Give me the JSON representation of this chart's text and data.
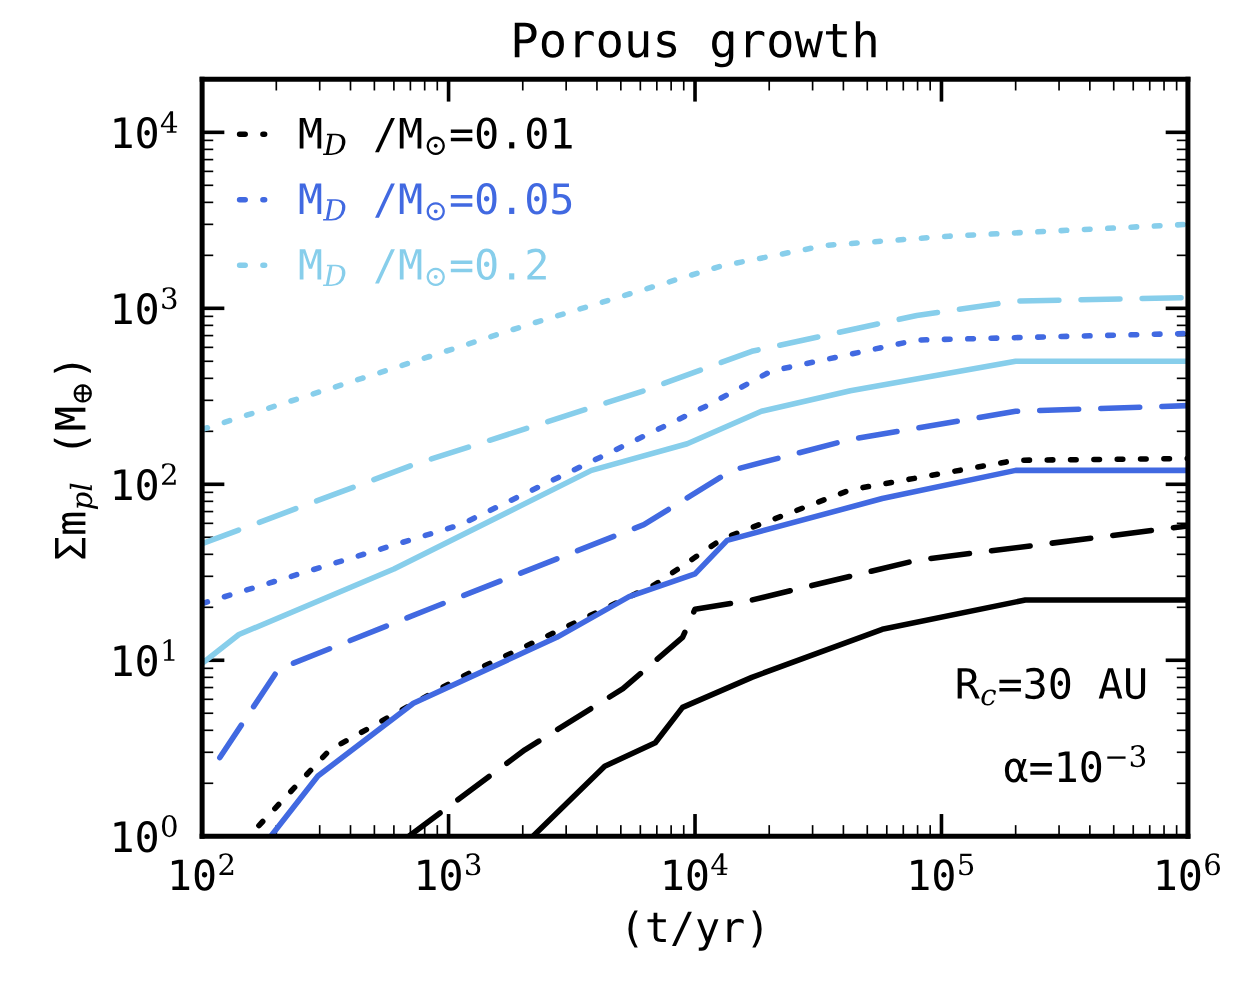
{
  "chart_data": {
    "type": "line",
    "title": "Porous growth",
    "xlabel": "(t/yr)",
    "ylabel": "Σm$_{pl}$ (M$_{⊕}$)",
    "log": "xy",
    "grid": false,
    "legend": "top left",
    "xlim": [
      100,
      1000000
    ],
    "ylim": [
      1,
      20000
    ],
    "xticks": [
      {
        "value": 100,
        "label": "10$^{2}$"
      },
      {
        "value": 1000,
        "label": "10$^{3}$"
      },
      {
        "value": 10000,
        "label": "10$^{4}$"
      },
      {
        "value": 100000,
        "label": "10$^{5}$"
      },
      {
        "value": 1000000,
        "label": "10$^{6}$"
      }
    ],
    "yticks": [
      {
        "value": 1,
        "label": "10$^{0}$"
      },
      {
        "value": 10,
        "label": "10$^{1}$"
      },
      {
        "value": 100,
        "label": "10$^{2}$"
      },
      {
        "value": 1000,
        "label": "10$^{3}$"
      },
      {
        "value": 10000,
        "label": "10$^{4}$"
      }
    ],
    "annotations": [
      "R$_{c}$=30 AU",
      "α=10$^{−3}$"
    ],
    "series": [
      {
        "name": "M$_{D}$ /M$_{⊙}$=0.01",
        "color": "#000000",
        "line_style": "dotted",
        "x": [
          170,
          330,
          1120,
          6900,
          12900,
          42700,
          200000,
          1000000
        ],
        "values": [
          1.15,
          3.1,
          8,
          27,
          49,
          93,
          137,
          140
        ]
      },
      {
        "name": "M$_{D}$ /M$_{⊙}$=0.05",
        "color": "#4169e1",
        "line_style": "dotted",
        "x": [
          100,
          1120,
          11200,
          20400,
          79400,
          1000000
        ],
        "values": [
          21,
          59,
          280,
          440,
          660,
          720
        ]
      },
      {
        "name": "M$_{D}$ /M$_{⊙}$=0.2",
        "color": "#87ceeb",
        "line_style": "dotted",
        "x": [
          100,
          445,
          2060,
          12800,
          34000,
          107000,
          1000000
        ],
        "values": [
          205,
          400,
          800,
          1740,
          2280,
          2570,
          3000
        ]
      },
      {
        "color": "#000000",
        "line_style": "solid",
        "x": [
          2200,
          4300,
          6900,
          8900,
          17000,
          57500,
          219000,
          1000000
        ],
        "values": [
          1,
          2.5,
          3.4,
          5.4,
          8,
          15,
          22,
          22
        ]
      },
      {
        "color": "#000000",
        "line_style": "dashed",
        "x": [
          690,
          2040,
          5100,
          8900,
          10000,
          17000,
          79400,
          1000000
        ],
        "values": [
          1,
          3.1,
          6.9,
          13.5,
          19.5,
          22,
          37,
          58
        ]
      },
      {
        "color": "#4169e1",
        "line_style": "solid",
        "x": [
          190,
          295,
          720,
          2750,
          5400,
          10000,
          13500,
          57500,
          200000,
          1000000
        ],
        "values": [
          1,
          2.2,
          5.7,
          13.5,
          23,
          31,
          48,
          83,
          120,
          120
        ]
      },
      {
        "color": "#4169e1",
        "line_style": "dashed",
        "x": [
          118,
          204,
          830,
          6200,
          14100,
          42700,
          200000,
          1000000
        ],
        "values": [
          2.8,
          8.9,
          19.5,
          59,
          120,
          180,
          260,
          280
        ]
      },
      {
        "color": "#87ceeb",
        "line_style": "solid",
        "x": [
          100,
          141,
          600,
          3800,
          9300,
          18600,
          42700,
          200000,
          1000000
        ],
        "values": [
          9.6,
          14,
          33,
          120,
          170,
          260,
          340,
          500,
          500
        ]
      },
      {
        "color": "#87ceeb",
        "line_style": "dashed",
        "x": [
          100,
          730,
          6200,
          17000,
          79400,
          200000,
          1000000
        ],
        "values": [
          46,
          130,
          340,
          570,
          910,
          1100,
          1150
        ]
      }
    ]
  }
}
